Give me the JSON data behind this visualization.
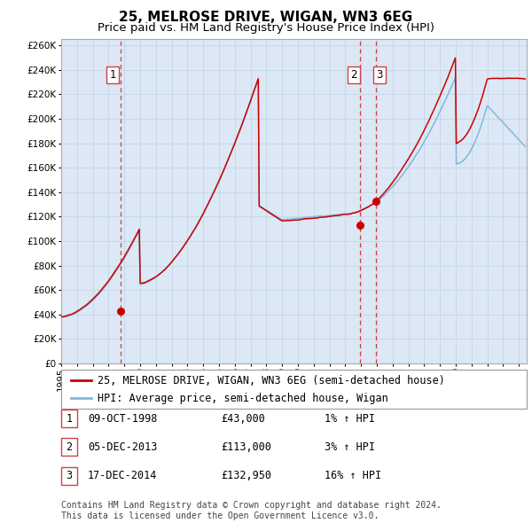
{
  "title": "25, MELROSE DRIVE, WIGAN, WN3 6EG",
  "subtitle": "Price paid vs. HM Land Registry's House Price Index (HPI)",
  "ylabel_ticks": [
    0,
    20000,
    40000,
    60000,
    80000,
    100000,
    120000,
    140000,
    160000,
    180000,
    200000,
    220000,
    240000,
    260000
  ],
  "ylim": [
    0,
    265000
  ],
  "xlim_start": 1995.0,
  "xlim_end": 2024.5,
  "grid_color": "#c8d8e8",
  "plot_bg_color": "#dce8f5",
  "red_line_color": "#cc0000",
  "blue_line_color": "#80b8e0",
  "vline_color": "#cc4444",
  "sale_marker_color": "#cc0000",
  "sales": [
    {
      "date_num": 1998.78,
      "price": 43000,
      "label": "1"
    },
    {
      "date_num": 2013.92,
      "price": 113000,
      "label": "2"
    },
    {
      "date_num": 2014.96,
      "price": 132950,
      "label": "3"
    }
  ],
  "legend_entries": [
    "25, MELROSE DRIVE, WIGAN, WN3 6EG (semi-detached house)",
    "HPI: Average price, semi-detached house, Wigan"
  ],
  "table_rows": [
    {
      "num": "1",
      "date": "09-OCT-1998",
      "price": "£43,000",
      "hpi": "1% ↑ HPI"
    },
    {
      "num": "2",
      "date": "05-DEC-2013",
      "price": "£113,000",
      "hpi": "3% ↑ HPI"
    },
    {
      "num": "3",
      "date": "17-DEC-2014",
      "price": "£132,950",
      "hpi": "16% ↑ HPI"
    }
  ],
  "footer": "Contains HM Land Registry data © Crown copyright and database right 2024.\nThis data is licensed under the Open Government Licence v3.0.",
  "title_fontsize": 11,
  "subtitle_fontsize": 9.5,
  "tick_fontsize": 7.5,
  "legend_fontsize": 8.5,
  "table_fontsize": 8.5,
  "footer_fontsize": 7
}
